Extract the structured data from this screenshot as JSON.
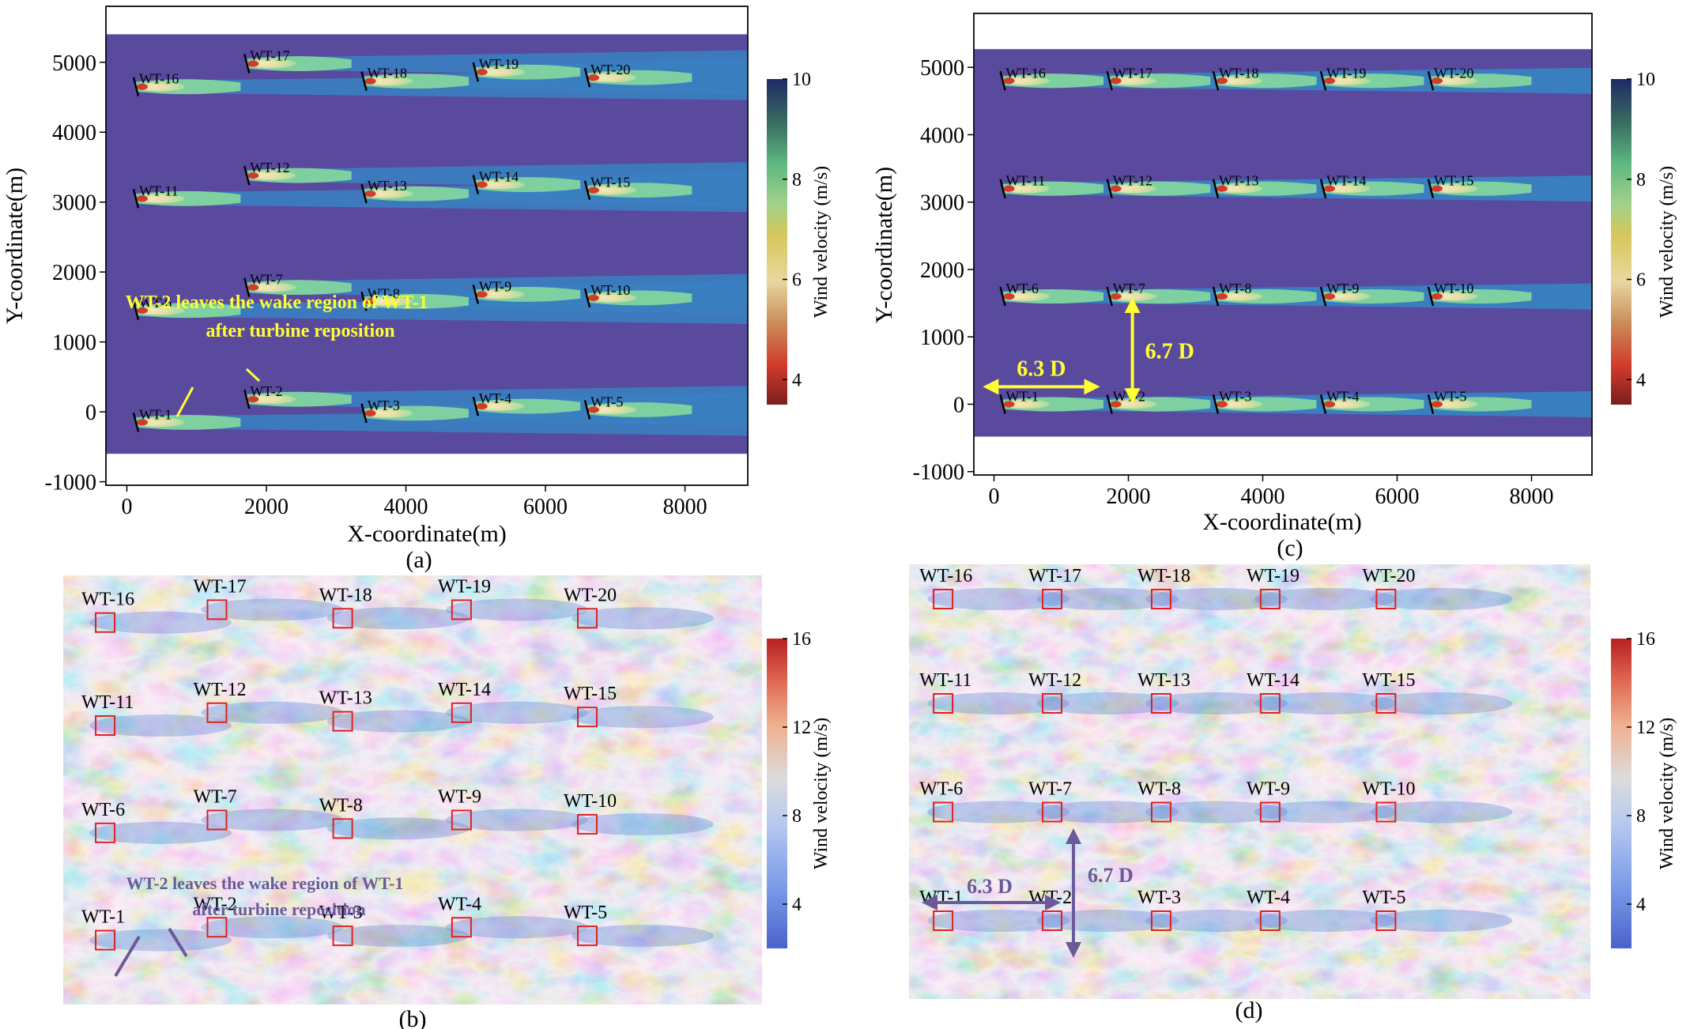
{
  "colors": {
    "background_velocity": "#5a4a9e",
    "wake_outer": "#3a7fc0",
    "wake_mid": "#7fd0a0",
    "wake_inner": "#f1e8b8",
    "annotation_yellow": "#ffff33",
    "annotation_purple": "#6a5a99",
    "turbine_box": "#e02020",
    "turbulent_red": "#e8866a",
    "turbulent_blue": "#5a84d8"
  },
  "chart_data": [
    {
      "type": "heatmap",
      "panel_label": "(a)",
      "xlabel": "X-coordinate(m)",
      "ylabel": "Y-coordinate(m)",
      "xlim": [
        -300,
        8900
      ],
      "ylim": [
        -1050,
        5800
      ],
      "xticks": [
        0,
        2000,
        4000,
        6000,
        8000
      ],
      "yticks": [
        -1000,
        0,
        1000,
        2000,
        3000,
        4000,
        5000
      ],
      "xtick_labels": [
        "0",
        "2000",
        "4000",
        "6000",
        "8000"
      ],
      "ytick_labels": [
        "-1000",
        "0",
        "1000",
        "2000",
        "3000",
        "4000",
        "5000"
      ],
      "domain": {
        "y": [
          -600,
          5400
        ]
      },
      "colorbar": {
        "label": "Wind velocity (m/s)",
        "range": [
          3.5,
          10
        ],
        "ticks": [
          4,
          6,
          8,
          10
        ],
        "tick_labels": [
          "4",
          "6",
          "8",
          "10"
        ]
      },
      "turbines": [
        {
          "name": "WT-1",
          "x": 130,
          "y": -150
        },
        {
          "name": "WT-2",
          "x": 1720,
          "y": 180
        },
        {
          "name": "WT-3",
          "x": 3400,
          "y": -20
        },
        {
          "name": "WT-4",
          "x": 5000,
          "y": 80
        },
        {
          "name": "WT-5",
          "x": 6600,
          "y": 30
        },
        {
          "name": "WT-6",
          "x": 130,
          "y": 1450
        },
        {
          "name": "WT-7",
          "x": 1720,
          "y": 1780
        },
        {
          "name": "WT-8",
          "x": 3400,
          "y": 1580
        },
        {
          "name": "WT-9",
          "x": 5000,
          "y": 1680
        },
        {
          "name": "WT-10",
          "x": 6600,
          "y": 1630
        },
        {
          "name": "WT-11",
          "x": 130,
          "y": 3050
        },
        {
          "name": "WT-12",
          "x": 1720,
          "y": 3380
        },
        {
          "name": "WT-13",
          "x": 3400,
          "y": 3120
        },
        {
          "name": "WT-14",
          "x": 5000,
          "y": 3250
        },
        {
          "name": "WT-15",
          "x": 6600,
          "y": 3170
        },
        {
          "name": "WT-16",
          "x": 130,
          "y": 4650
        },
        {
          "name": "WT-17",
          "x": 1720,
          "y": 4980
        },
        {
          "name": "WT-18",
          "x": 3400,
          "y": 4730
        },
        {
          "name": "WT-19",
          "x": 5000,
          "y": 4860
        },
        {
          "name": "WT-20",
          "x": 6600,
          "y": 4780
        }
      ],
      "annotations": [
        {
          "lines": [
            "WT-2 leaves the wake region of WT-1",
            "after turbine reposition"
          ]
        }
      ]
    },
    {
      "type": "heatmap",
      "panel_label": "(c)",
      "xlabel": "X-coordinate(m)",
      "ylabel": "Y-coordinate(m)",
      "xlim": [
        -300,
        8900
      ],
      "ylim": [
        -1050,
        5800
      ],
      "xticks": [
        0,
        2000,
        4000,
        6000,
        8000
      ],
      "yticks": [
        -1000,
        0,
        1000,
        2000,
        3000,
        4000,
        5000
      ],
      "xtick_labels": [
        "0",
        "2000",
        "4000",
        "6000",
        "8000"
      ],
      "ytick_labels": [
        "-1000",
        "0",
        "1000",
        "2000",
        "3000",
        "4000",
        "5000"
      ],
      "domain": {
        "y": [
          -480,
          5270
        ]
      },
      "colorbar": {
        "label": "Wind velocity (m/s)",
        "range": [
          3.5,
          10
        ],
        "ticks": [
          4,
          6,
          8,
          10
        ],
        "tick_labels": [
          "4",
          "6",
          "8",
          "10"
        ]
      },
      "turbines": [
        {
          "name": "WT-1",
          "x": 130,
          "y": 0
        },
        {
          "name": "WT-2",
          "x": 1720,
          "y": 0
        },
        {
          "name": "WT-3",
          "x": 3300,
          "y": 0
        },
        {
          "name": "WT-4",
          "x": 4900,
          "y": 0
        },
        {
          "name": "WT-5",
          "x": 6500,
          "y": 0
        },
        {
          "name": "WT-6",
          "x": 130,
          "y": 1600
        },
        {
          "name": "WT-7",
          "x": 1720,
          "y": 1600
        },
        {
          "name": "WT-8",
          "x": 3300,
          "y": 1600
        },
        {
          "name": "WT-9",
          "x": 4900,
          "y": 1600
        },
        {
          "name": "WT-10",
          "x": 6500,
          "y": 1600
        },
        {
          "name": "WT-11",
          "x": 130,
          "y": 3200
        },
        {
          "name": "WT-12",
          "x": 1720,
          "y": 3200
        },
        {
          "name": "WT-13",
          "x": 3300,
          "y": 3200
        },
        {
          "name": "WT-14",
          "x": 4900,
          "y": 3200
        },
        {
          "name": "WT-15",
          "x": 6500,
          "y": 3200
        },
        {
          "name": "WT-16",
          "x": 130,
          "y": 4800
        },
        {
          "name": "WT-17",
          "x": 1720,
          "y": 4800
        },
        {
          "name": "WT-18",
          "x": 3300,
          "y": 4800
        },
        {
          "name": "WT-19",
          "x": 4900,
          "y": 4800
        },
        {
          "name": "WT-20",
          "x": 6500,
          "y": 4800
        }
      ],
      "dimensions": [
        {
          "label": "6.3 D",
          "from": [
            -120,
            260
          ],
          "to": [
            1530,
            260
          ]
        },
        {
          "label": "6.7 D",
          "from": [
            2060,
            50
          ],
          "to": [
            2060,
            1540
          ]
        }
      ]
    },
    {
      "type": "heatmap",
      "panel_label": "(b)",
      "colorbar": {
        "label": "Wind velocity (m/s)",
        "range": [
          2,
          16
        ],
        "ticks": [
          4,
          8,
          12,
          16
        ],
        "tick_labels": [
          "4",
          "8",
          "12",
          "16"
        ]
      },
      "turbines": [
        {
          "name": "WT-1",
          "u": 0.06,
          "v": 0.15
        },
        {
          "name": "WT-2",
          "u": 0.22,
          "v": 0.18
        },
        {
          "name": "WT-3",
          "u": 0.4,
          "v": 0.16
        },
        {
          "name": "WT-4",
          "u": 0.57,
          "v": 0.18
        },
        {
          "name": "WT-5",
          "u": 0.75,
          "v": 0.16
        },
        {
          "name": "WT-6",
          "u": 0.06,
          "v": 0.4
        },
        {
          "name": "WT-7",
          "u": 0.22,
          "v": 0.43
        },
        {
          "name": "WT-8",
          "u": 0.4,
          "v": 0.41
        },
        {
          "name": "WT-9",
          "u": 0.57,
          "v": 0.43
        },
        {
          "name": "WT-10",
          "u": 0.75,
          "v": 0.42
        },
        {
          "name": "WT-11",
          "u": 0.06,
          "v": 0.65
        },
        {
          "name": "WT-12",
          "u": 0.22,
          "v": 0.68
        },
        {
          "name": "WT-13",
          "u": 0.4,
          "v": 0.66
        },
        {
          "name": "WT-14",
          "u": 0.57,
          "v": 0.68
        },
        {
          "name": "WT-15",
          "u": 0.75,
          "v": 0.67
        },
        {
          "name": "WT-16",
          "u": 0.06,
          "v": 0.89
        },
        {
          "name": "WT-17",
          "u": 0.22,
          "v": 0.92
        },
        {
          "name": "WT-18",
          "u": 0.4,
          "v": 0.9
        },
        {
          "name": "WT-19",
          "u": 0.57,
          "v": 0.92
        },
        {
          "name": "WT-20",
          "u": 0.75,
          "v": 0.9
        }
      ],
      "annotations": [
        {
          "lines": [
            "WT-2 leaves the wake region of WT-1",
            "after turbine reposition"
          ]
        }
      ]
    },
    {
      "type": "heatmap",
      "panel_label": "(d)",
      "colorbar": {
        "label": "Wind velocity (m/s)",
        "range": [
          2,
          16
        ],
        "ticks": [
          4,
          8,
          12,
          16
        ],
        "tick_labels": [
          "4",
          "8",
          "12",
          "16"
        ]
      },
      "turbines": [
        {
          "name": "WT-1",
          "u": 0.05,
          "v": 0.18
        },
        {
          "name": "WT-2",
          "u": 0.21,
          "v": 0.18
        },
        {
          "name": "WT-3",
          "u": 0.37,
          "v": 0.18
        },
        {
          "name": "WT-4",
          "u": 0.53,
          "v": 0.18
        },
        {
          "name": "WT-5",
          "u": 0.7,
          "v": 0.18
        },
        {
          "name": "WT-6",
          "u": 0.05,
          "v": 0.43
        },
        {
          "name": "WT-7",
          "u": 0.21,
          "v": 0.43
        },
        {
          "name": "WT-8",
          "u": 0.37,
          "v": 0.43
        },
        {
          "name": "WT-9",
          "u": 0.53,
          "v": 0.43
        },
        {
          "name": "WT-10",
          "u": 0.7,
          "v": 0.43
        },
        {
          "name": "WT-11",
          "u": 0.05,
          "v": 0.68
        },
        {
          "name": "WT-12",
          "u": 0.21,
          "v": 0.68
        },
        {
          "name": "WT-13",
          "u": 0.37,
          "v": 0.68
        },
        {
          "name": "WT-14",
          "u": 0.53,
          "v": 0.68
        },
        {
          "name": "WT-15",
          "u": 0.7,
          "v": 0.68
        },
        {
          "name": "WT-16",
          "u": 0.05,
          "v": 0.92
        },
        {
          "name": "WT-17",
          "u": 0.21,
          "v": 0.92
        },
        {
          "name": "WT-18",
          "u": 0.37,
          "v": 0.92
        },
        {
          "name": "WT-19",
          "u": 0.53,
          "v": 0.92
        },
        {
          "name": "WT-20",
          "u": 0.7,
          "v": 0.92
        }
      ],
      "dimensions": [
        {
          "label": "6.3 D"
        },
        {
          "label": "6.7 D"
        }
      ]
    }
  ]
}
